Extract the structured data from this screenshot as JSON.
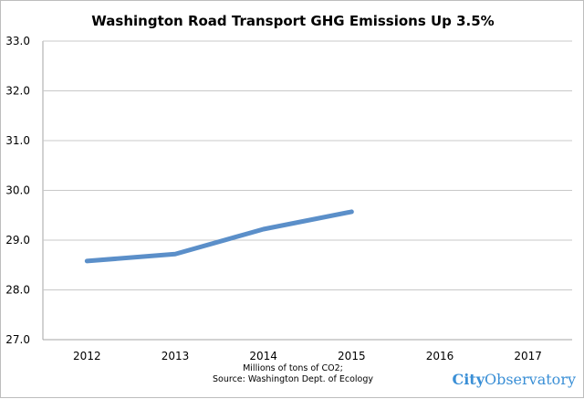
{
  "chart_data": {
    "type": "line",
    "title": "Washington Road Transport GHG Emissions Up 3.5%",
    "categories": [
      "2012",
      "2013",
      "2014",
      "2015",
      "2016",
      "2017"
    ],
    "series": [
      {
        "values": [
          28.58,
          28.72,
          29.22,
          29.57,
          null,
          null
        ],
        "color": "#5b8fc9"
      }
    ],
    "ylim": [
      27.0,
      33.0
    ],
    "yticks": [
      "27.0",
      "28.0",
      "29.0",
      "30.0",
      "31.0",
      "32.0",
      "33.0"
    ],
    "grid": true,
    "note_lines": [
      "Millions of tons of CO2;",
      "Source: Washington Dept. of Ecology"
    ]
  },
  "branding": {
    "logo_bold": "City",
    "logo_regular": "Observatory",
    "color": "#3a8fd6"
  }
}
